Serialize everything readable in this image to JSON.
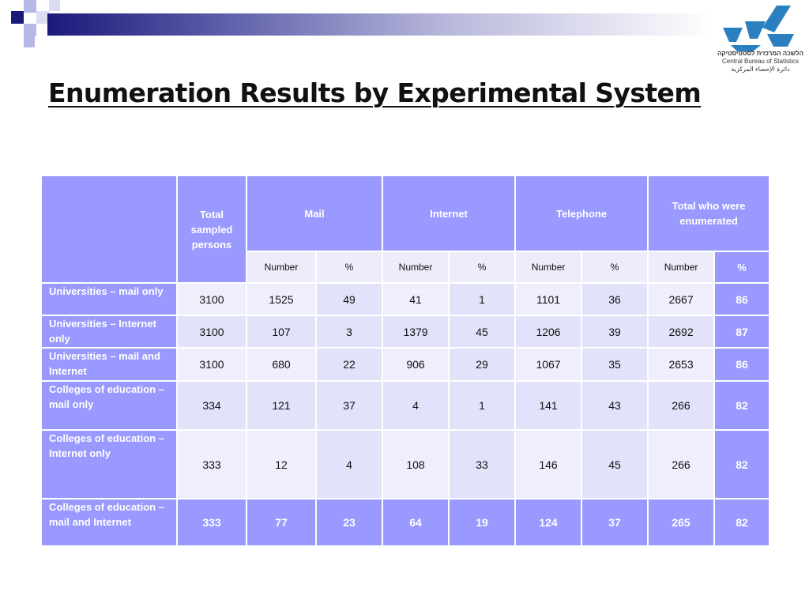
{
  "slide": {
    "title": "Enumeration Results by Experimental System"
  },
  "logo": {
    "hebrew": "הלשכה המרכזית לסטטיסטיקה",
    "english": "Central Bureau of Statistics",
    "arabic": "دائرة الإحصاء المركزية"
  },
  "colors": {
    "header_fill": "#9999ff",
    "cell_fill_light": "#e2e2fa",
    "cell_fill_pale": "#eeeefc",
    "accent_navy": "#1a1a7a"
  },
  "table": {
    "header": {
      "total_sampled": "Total sampled persons",
      "mail": "Mail",
      "internet": "Internet",
      "telephone": "Telephone",
      "total_enumerated": "Total who were enumerated"
    },
    "subheaders": [
      "Number",
      "%",
      "Number",
      "%",
      "Number",
      "%",
      "Number",
      "%"
    ],
    "rows": [
      {
        "label": "Universities – mail only",
        "values": [
          "3100",
          "1525",
          "49",
          "41",
          "1",
          "1101",
          "36",
          "2667",
          "86"
        ]
      },
      {
        "label": "Universities – Internet only",
        "values": [
          "3100",
          "107",
          "3",
          "1379",
          "45",
          "1206",
          "39",
          "2692",
          "87"
        ]
      },
      {
        "label": "Universities – mail and Internet",
        "values": [
          "3100",
          "680",
          "22",
          "906",
          "29",
          "1067",
          "35",
          "2653",
          "86"
        ]
      },
      {
        "label": "Colleges of education – mail only",
        "values": [
          "334",
          "121",
          "37",
          "4",
          "1",
          "141",
          "43",
          "266",
          "82"
        ]
      },
      {
        "label": "Colleges of education – Internet only",
        "values": [
          "333",
          "12",
          "4",
          "108",
          "33",
          "146",
          "45",
          "266",
          "82"
        ]
      },
      {
        "label": "Colleges of education – mail and Internet",
        "values": [
          "333",
          "77",
          "23",
          "64",
          "19",
          "124",
          "37",
          "265",
          "82"
        ]
      }
    ]
  }
}
